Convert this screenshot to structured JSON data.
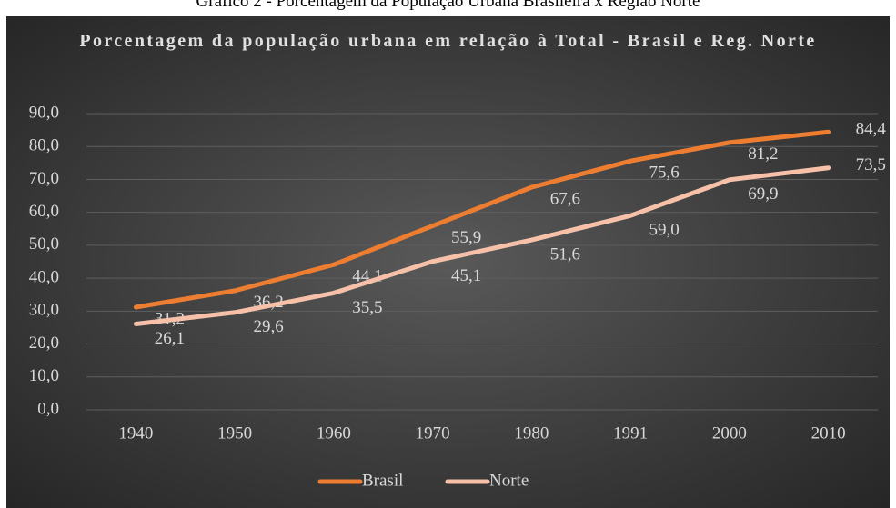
{
  "caption": "Gráfico 2 - Porcentagem da População Urbana Brasileira x Região Norte",
  "chart_data": {
    "type": "line",
    "title": "Porcentagem da população urbana em relação à Total - Brasil e Reg. Norte",
    "categories": [
      "1940",
      "1950",
      "1960",
      "1970",
      "1980",
      "1991",
      "2000",
      "2010"
    ],
    "series": [
      {
        "name": "Brasil",
        "color": "#ed7d31",
        "values": [
          31.2,
          36.2,
          44.1,
          55.9,
          67.6,
          75.6,
          81.2,
          84.4
        ],
        "value_labels": [
          "31,2",
          "36,2",
          "44,1",
          "55,9",
          "67,6",
          "75,6",
          "81,2",
          "84,4"
        ]
      },
      {
        "name": "Norte",
        "color": "#f6c1a8",
        "values": [
          26.1,
          29.6,
          35.5,
          45.1,
          51.6,
          59.0,
          69.9,
          73.5
        ],
        "value_labels": [
          "26,1",
          "29,6",
          "35,5",
          "45,1",
          "51,6",
          "59,0",
          "69,9",
          "73,5"
        ]
      }
    ],
    "ylim": [
      0,
      90
    ],
    "yticks": [
      {
        "value": 0,
        "label": "0,0"
      },
      {
        "value": 10,
        "label": "10,0"
      },
      {
        "value": 20,
        "label": "20,0"
      },
      {
        "value": 30,
        "label": "30,0"
      },
      {
        "value": 40,
        "label": "40,0"
      },
      {
        "value": 50,
        "label": "50,0"
      },
      {
        "value": 60,
        "label": "60,0"
      },
      {
        "value": 70,
        "label": "70,0"
      },
      {
        "value": 80,
        "label": "80,0"
      },
      {
        "value": 90,
        "label": "90,0"
      }
    ],
    "grid": true,
    "legend": "bottom"
  }
}
